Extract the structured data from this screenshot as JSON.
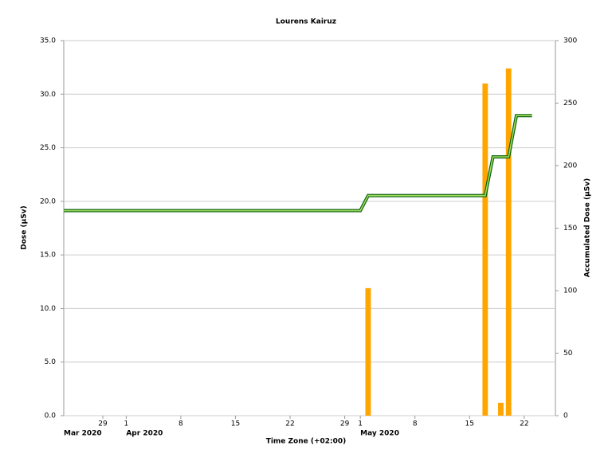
{
  "chart_data": {
    "type": "combo",
    "title": "Lourens Kairuz",
    "y_label": "Dose (µSv)",
    "y2_label": "Accumulated Dose (µSv)",
    "x_label": "Time Zone (+02:00)",
    "xlim": [
      "2020-03-24",
      "2020-05-26"
    ],
    "xticks": [
      {
        "value": "2020-03-29",
        "label": "29"
      },
      {
        "value": "2020-04-01",
        "label": "1"
      },
      {
        "value": "2020-04-08",
        "label": "8"
      },
      {
        "value": "2020-04-15",
        "label": "15"
      },
      {
        "value": "2020-04-22",
        "label": "22"
      },
      {
        "value": "2020-04-29",
        "label": "29"
      },
      {
        "value": "2020-05-01",
        "label": "1"
      },
      {
        "value": "2020-05-08",
        "label": "8"
      },
      {
        "value": "2020-05-15",
        "label": "15"
      },
      {
        "value": "2020-05-22",
        "label": "22"
      }
    ],
    "month_labels": [
      {
        "value": "2020-03-24",
        "label": "Mar 2020"
      },
      {
        "value": "2020-04-01",
        "label": "Apr 2020"
      },
      {
        "value": "2020-05-01",
        "label": "May 2020"
      }
    ],
    "ylim": [
      0,
      35
    ],
    "yticks": [
      {
        "value": 0,
        "label": "0.0"
      },
      {
        "value": 5,
        "label": "5.0"
      },
      {
        "value": 10,
        "label": "10.0"
      },
      {
        "value": 15,
        "label": "15.0"
      },
      {
        "value": 20,
        "label": "20.0"
      },
      {
        "value": 25,
        "label": "25.0"
      },
      {
        "value": 30,
        "label": "30.0"
      },
      {
        "value": 35,
        "label": "35.0"
      }
    ],
    "y2lim": [
      0,
      300
    ],
    "y2ticks": [
      0,
      50,
      100,
      150,
      200,
      250,
      300
    ],
    "grid": true,
    "series": [
      {
        "type": "bar",
        "color": "#ffa500",
        "x": [
          "2020-05-02",
          "2020-05-17",
          "2020-05-19",
          "2020-05-20"
        ],
        "values": [
          11.9,
          31.0,
          1.2,
          32.4
        ]
      },
      {
        "type": "line",
        "axis": "y2",
        "color": "#9be05a",
        "outline": "#106010",
        "x": [
          "2020-03-24",
          "2020-05-01",
          "2020-05-02",
          "2020-05-17",
          "2020-05-18",
          "2020-05-20",
          "2020-05-21",
          "2020-05-23"
        ],
        "values": [
          164,
          164,
          176,
          176,
          207,
          207,
          240,
          240
        ]
      }
    ]
  }
}
